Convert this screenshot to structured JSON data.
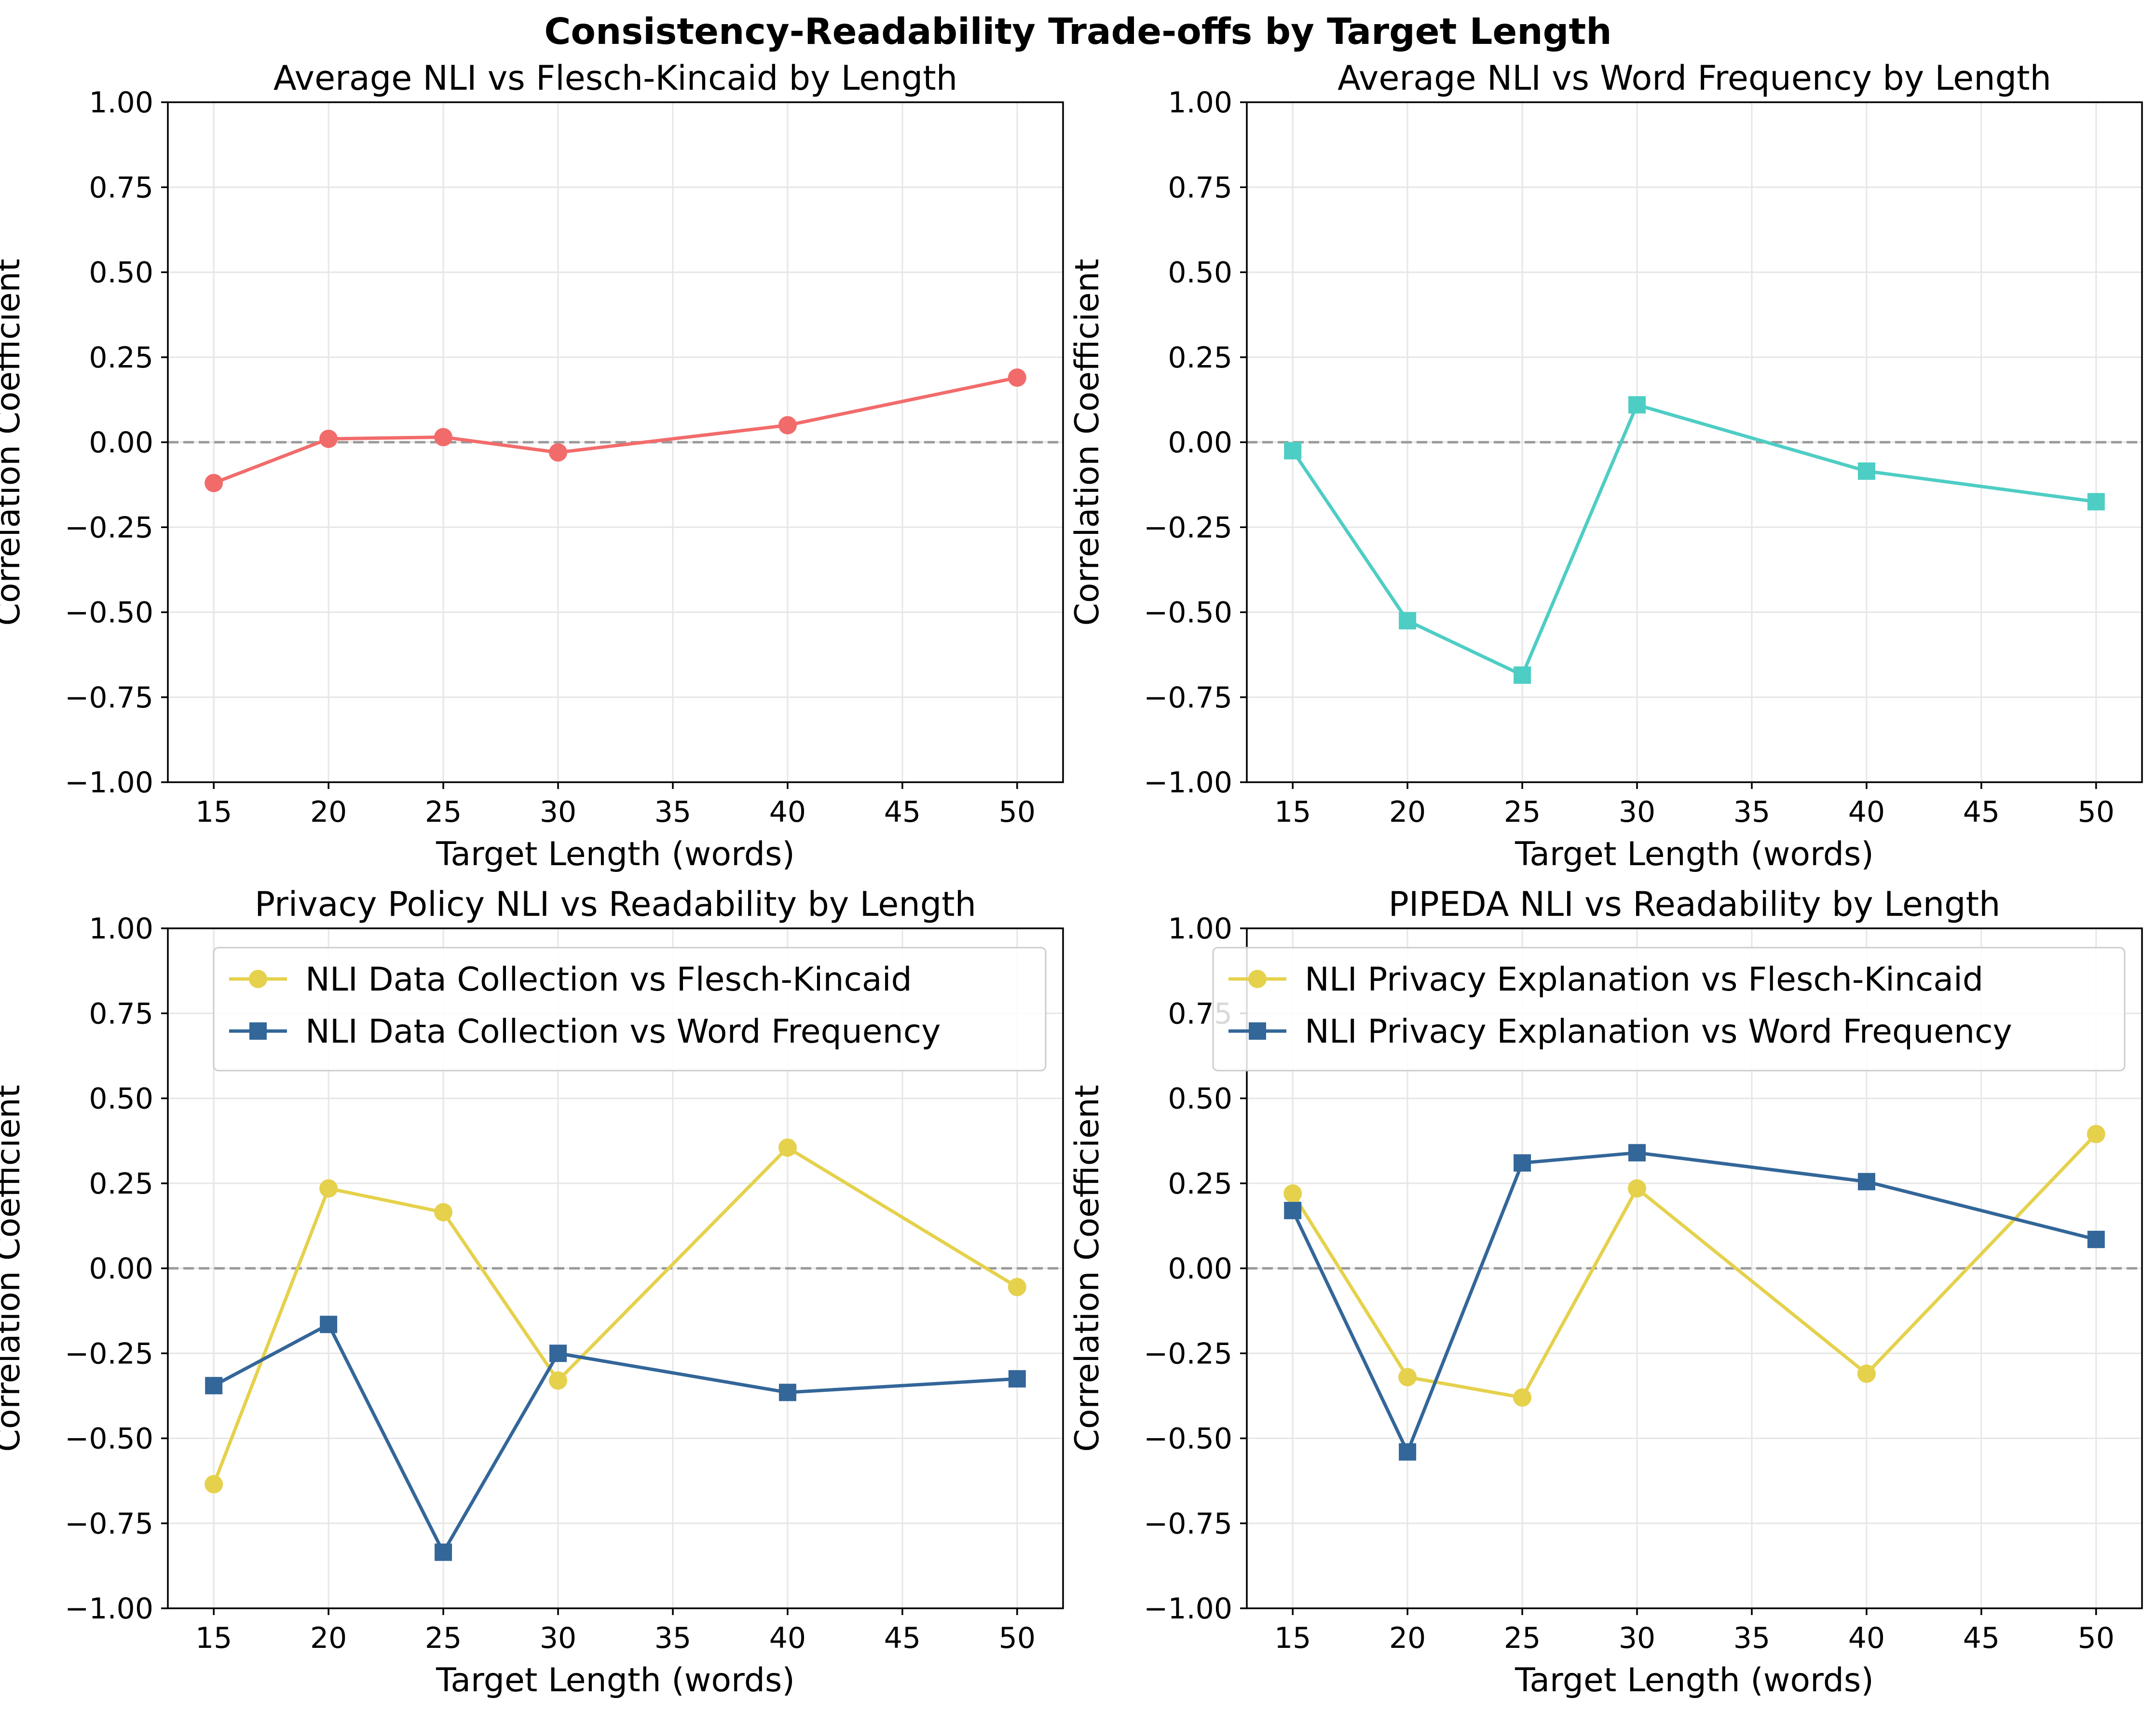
{
  "title": "Consistency-Readability Trade-offs by Target Length",
  "chart_data": [
    {
      "type": "line",
      "title": "Average NLI vs Flesch-Kincaid by Length",
      "xlabel": "Target Length (words)",
      "ylabel": "Correlation Coefficient",
      "xlim": [
        13,
        52
      ],
      "ylim": [
        -1,
        1
      ],
      "xticks": [
        15,
        20,
        25,
        30,
        35,
        40,
        45,
        50
      ],
      "yticks": [
        1.0,
        0.75,
        0.5,
        0.25,
        0.0,
        -0.25,
        -0.5,
        -0.75,
        -1.0
      ],
      "ytick_labels": [
        "1.00",
        "0.75",
        "0.50",
        "0.25",
        "0.00",
        "−0.25",
        "−0.50",
        "−0.75",
        "−1.00"
      ],
      "grid": true,
      "zero_line": true,
      "legend": false,
      "x": [
        15,
        20,
        25,
        30,
        40,
        50
      ],
      "series": [
        {
          "name": "",
          "values": [
            -0.12,
            0.01,
            0.015,
            -0.03,
            0.05,
            0.19
          ],
          "color": "#f26b6b",
          "marker": "circle"
        }
      ]
    },
    {
      "type": "line",
      "title": "Average NLI vs Word Frequency by Length",
      "xlabel": "Target Length (words)",
      "ylabel": "Correlation Coefficient",
      "xlim": [
        13,
        52
      ],
      "ylim": [
        -1,
        1
      ],
      "xticks": [
        15,
        20,
        25,
        30,
        35,
        40,
        45,
        50
      ],
      "yticks": [
        1.0,
        0.75,
        0.5,
        0.25,
        0.0,
        -0.25,
        -0.5,
        -0.75,
        -1.0
      ],
      "ytick_labels": [
        "1.00",
        "0.75",
        "0.50",
        "0.25",
        "0.00",
        "−0.25",
        "−0.50",
        "−0.75",
        "−1.00"
      ],
      "grid": true,
      "zero_line": true,
      "legend": false,
      "x": [
        15,
        20,
        25,
        30,
        40,
        50
      ],
      "series": [
        {
          "name": "",
          "values": [
            -0.025,
            -0.525,
            -0.685,
            0.11,
            -0.085,
            -0.175
          ],
          "color": "#4ecdc4",
          "marker": "square"
        }
      ]
    },
    {
      "type": "line",
      "title": "Privacy Policy NLI vs Readability by Length",
      "xlabel": "Target Length (words)",
      "ylabel": "Correlation Coefficient",
      "xlim": [
        13,
        52
      ],
      "ylim": [
        -1,
        1
      ],
      "xticks": [
        15,
        20,
        25,
        30,
        35,
        40,
        45,
        50
      ],
      "yticks": [
        1.0,
        0.75,
        0.5,
        0.25,
        0.0,
        -0.25,
        -0.5,
        -0.75,
        -1.0
      ],
      "ytick_labels": [
        "1.00",
        "0.75",
        "0.50",
        "0.25",
        "0.00",
        "−0.25",
        "−0.50",
        "−0.75",
        "−1.00"
      ],
      "grid": true,
      "zero_line": true,
      "legend": "top",
      "x": [
        15,
        20,
        25,
        30,
        40,
        50
      ],
      "series": [
        {
          "name": "NLI Data Collection vs Flesch-Kincaid",
          "values": [
            -0.635,
            0.235,
            0.165,
            -0.33,
            0.355,
            -0.055
          ],
          "color": "#e5d14c",
          "marker": "circle"
        },
        {
          "name": "NLI Data Collection vs Word Frequency",
          "values": [
            -0.345,
            -0.165,
            -0.835,
            -0.25,
            -0.365,
            -0.325
          ],
          "color": "#336699",
          "marker": "square"
        }
      ]
    },
    {
      "type": "line",
      "title": "PIPEDA NLI vs Readability by Length",
      "xlabel": "Target Length (words)",
      "ylabel": "Correlation Coefficient",
      "xlim": [
        13,
        52
      ],
      "ylim": [
        -1,
        1
      ],
      "xticks": [
        15,
        20,
        25,
        30,
        35,
        40,
        45,
        50
      ],
      "yticks": [
        1.0,
        0.75,
        0.5,
        0.25,
        0.0,
        -0.25,
        -0.5,
        -0.75,
        -1.0
      ],
      "ytick_labels": [
        "1.00",
        "0.75",
        "0.50",
        "0.25",
        "0.00",
        "−0.25",
        "−0.50",
        "−0.75",
        "−1.00"
      ],
      "grid": true,
      "zero_line": true,
      "legend": "top",
      "x": [
        15,
        20,
        25,
        30,
        40,
        50
      ],
      "series": [
        {
          "name": "NLI Privacy Explanation vs Flesch-Kincaid",
          "values": [
            0.22,
            -0.32,
            -0.38,
            0.235,
            -0.31,
            0.395
          ],
          "color": "#e5d14c",
          "marker": "circle"
        },
        {
          "name": "NLI Privacy Explanation vs Word Frequency",
          "values": [
            0.17,
            -0.54,
            0.31,
            0.34,
            0.255,
            0.085
          ],
          "color": "#336699",
          "marker": "square"
        }
      ]
    }
  ]
}
